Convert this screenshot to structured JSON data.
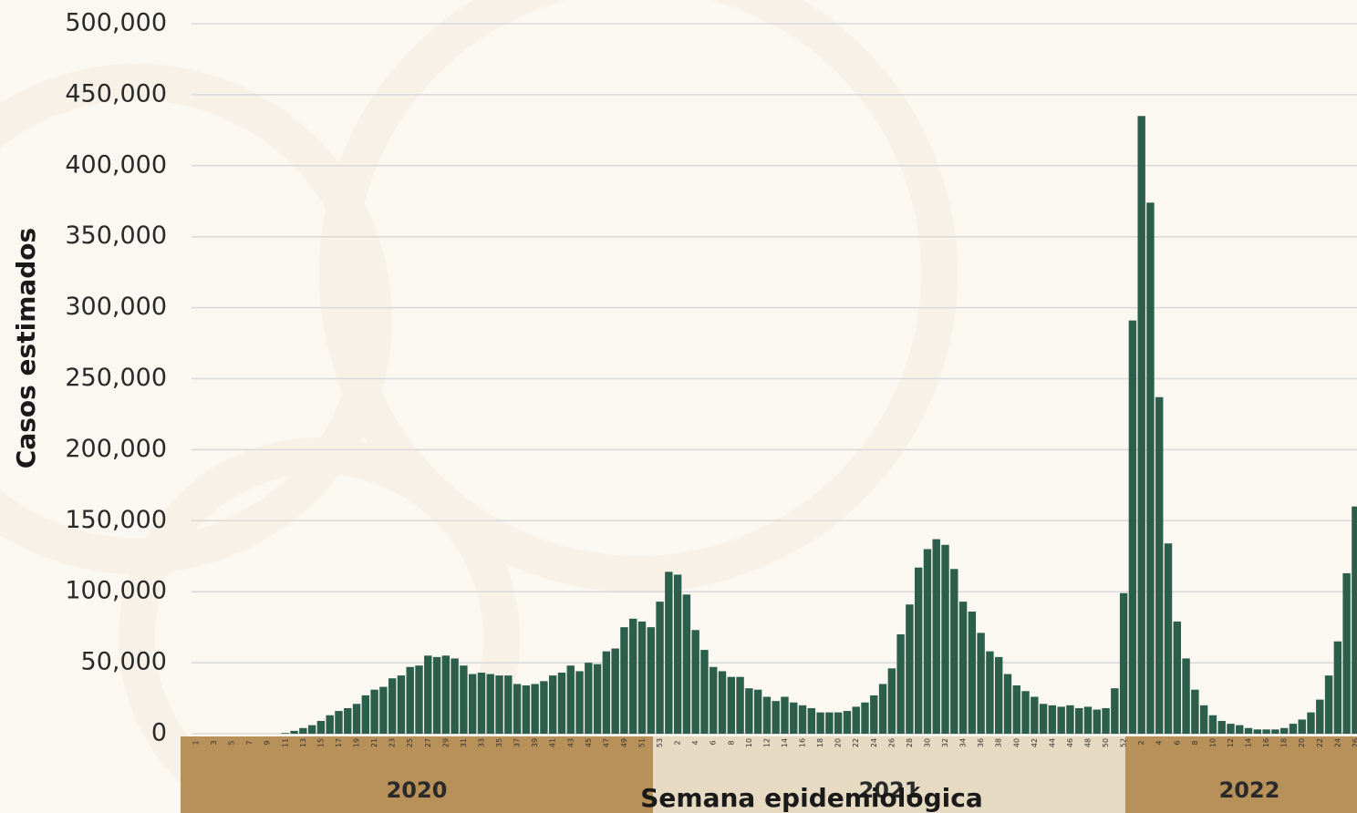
{
  "chart_data": {
    "type": "bar",
    "y_label": "Casos estimados",
    "x_label": "Semana epidemiológica",
    "years": [
      "2020",
      "2021",
      "2022"
    ],
    "color": "#2c5e4c",
    "grid": true,
    "ylim": [
      0,
      500000
    ],
    "yticks": [
      0,
      {
        "value": 50000,
        "label": "50,000"
      },
      {
        "value": 100000,
        "label": "100,000"
      },
      {
        "value": 150000,
        "label": "150,000"
      },
      {
        "value": 200000,
        "label": "200,000"
      },
      {
        "value": 250000,
        "label": "250,000"
      },
      {
        "value": 300000,
        "label": "300,000"
      },
      {
        "value": 350000,
        "label": "350,000"
      },
      {
        "value": 400000,
        "label": "400,000"
      },
      {
        "value": 450000,
        "label": "450,000"
      },
      {
        "value": 500000,
        "label": "500,000"
      }
    ],
    "categories": [
      "1",
      null,
      "3",
      null,
      "5",
      null,
      "7",
      null,
      "9",
      null,
      "11",
      null,
      "13",
      null,
      "15",
      null,
      "17",
      null,
      "19",
      null,
      "21",
      null,
      "23",
      null,
      "25",
      null,
      "27",
      null,
      "29",
      null,
      "31",
      null,
      "33",
      null,
      "35",
      null,
      "37",
      null,
      "39",
      null,
      "41",
      null,
      "43",
      null,
      "45",
      null,
      "47",
      null,
      "49",
      null,
      "51",
      null,
      "53",
      null,
      "2",
      null,
      "4",
      null,
      "6",
      null,
      "8",
      null,
      "10",
      null,
      "12",
      null,
      "14",
      null,
      "16",
      null,
      "18",
      null,
      "20",
      null,
      "22",
      null,
      "24",
      null,
      "26",
      null,
      "28",
      null,
      "30",
      null,
      "32",
      null,
      "34",
      null,
      "36",
      null,
      "38",
      null,
      "40",
      null,
      "42",
      null,
      "44",
      null,
      "46",
      null,
      "48",
      null,
      "50",
      null,
      "52",
      null,
      "2",
      null,
      "4",
      null,
      "6",
      null,
      "8",
      null,
      "10",
      null,
      "12",
      null,
      "14",
      null,
      "16",
      null,
      "18",
      null,
      "20",
      null,
      "22",
      null,
      "24",
      null,
      "26"
    ],
    "values": [
      0,
      0,
      0,
      0,
      0,
      0,
      0,
      0,
      0,
      0,
      500,
      2000,
      4000,
      6000,
      9000,
      13000,
      16000,
      18000,
      21000,
      27000,
      31000,
      33000,
      39000,
      41000,
      47000,
      48000,
      55000,
      54000,
      55000,
      53000,
      48000,
      42000,
      43000,
      42000,
      41000,
      41000,
      35000,
      34000,
      35000,
      37000,
      41000,
      43000,
      48000,
      44000,
      50000,
      49000,
      58000,
      60000,
      75000,
      81000,
      79000,
      75000,
      93000,
      114000,
      112000,
      98000,
      73000,
      59000,
      47000,
      44000,
      40000,
      40000,
      32000,
      31000,
      26000,
      23000,
      26000,
      22000,
      20000,
      18000,
      15000,
      15000,
      15000,
      16000,
      19000,
      22000,
      27000,
      35000,
      46000,
      70000,
      91000,
      117000,
      130000,
      137000,
      133000,
      116000,
      93000,
      86000,
      71000,
      58000,
      54000,
      42000,
      34000,
      30000,
      26000,
      21000,
      20000,
      19000,
      20000,
      18000,
      19000,
      17000,
      18000,
      32000,
      99000,
      291000,
      435000,
      374000,
      237000,
      134000,
      79000,
      53000,
      31000,
      20000,
      13000,
      9000,
      7000,
      6000,
      4000,
      3000,
      3000,
      3000,
      4000,
      7000,
      10000,
      15000,
      24000,
      41000,
      65000,
      113000,
      160000
    ]
  }
}
